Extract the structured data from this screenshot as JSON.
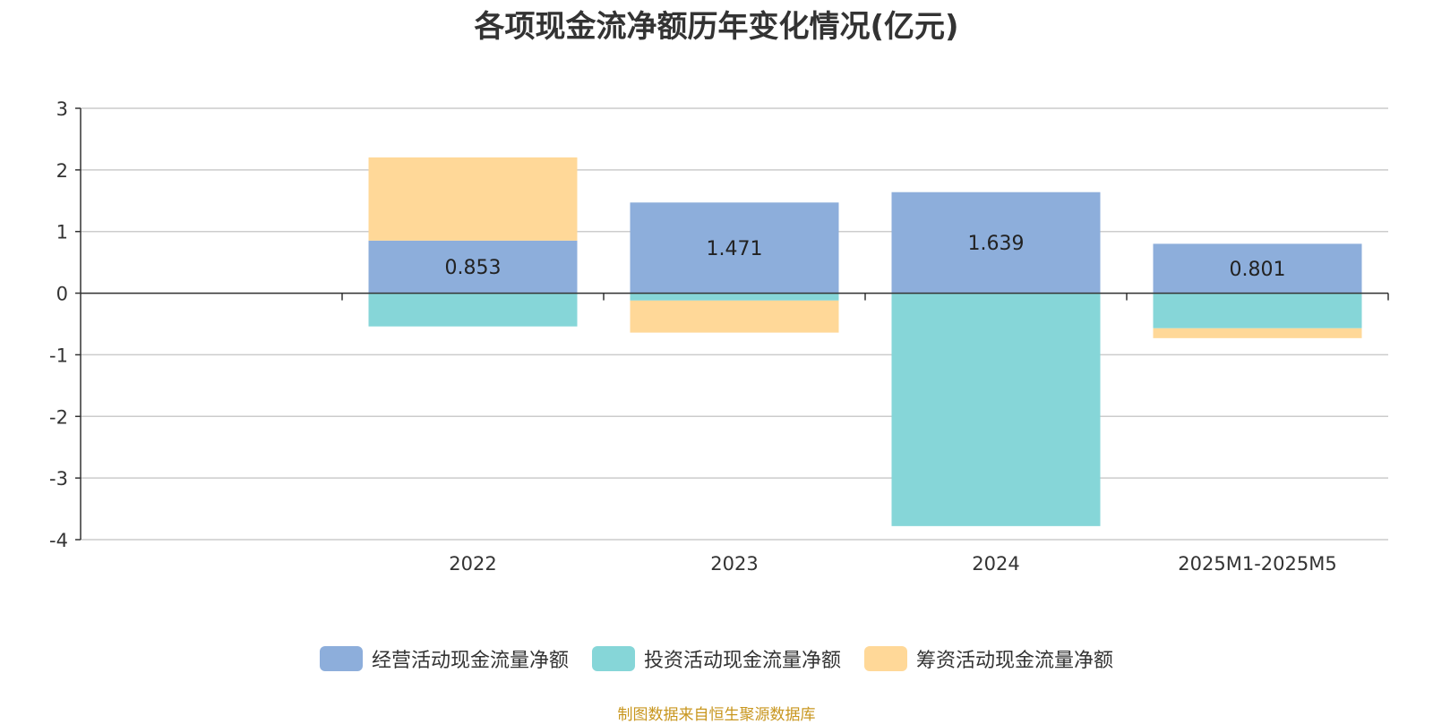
{
  "chart_data": {
    "type": "bar",
    "stacked": true,
    "title": "各项现金流净额历年变化情况(亿元)",
    "categories": [
      "",
      "2022",
      "2023",
      "2024",
      "2025M1-2025M5"
    ],
    "ylim": [
      -4,
      3
    ],
    "yticks": [
      3,
      2,
      1,
      0,
      -1,
      -2,
      -3,
      -4
    ],
    "grid": true,
    "legend_position": "bottom",
    "series": [
      {
        "name": "经营活动现金流量净额",
        "color": "#8daedb",
        "values": [
          null,
          0.853,
          1.471,
          1.639,
          0.801
        ],
        "labels": [
          "",
          "0.853",
          "1.471",
          "1.639",
          "0.801"
        ]
      },
      {
        "name": "投资活动现金流量净额",
        "color": "#86d6d8",
        "values": [
          null,
          -0.54,
          -0.12,
          -3.78,
          -0.57
        ]
      },
      {
        "name": "筹资活动现金流量净额",
        "color": "#ffd898",
        "values": [
          null,
          1.35,
          -0.52,
          0,
          -0.16
        ]
      }
    ]
  },
  "source": "制图数据来自恒生聚源数据库"
}
